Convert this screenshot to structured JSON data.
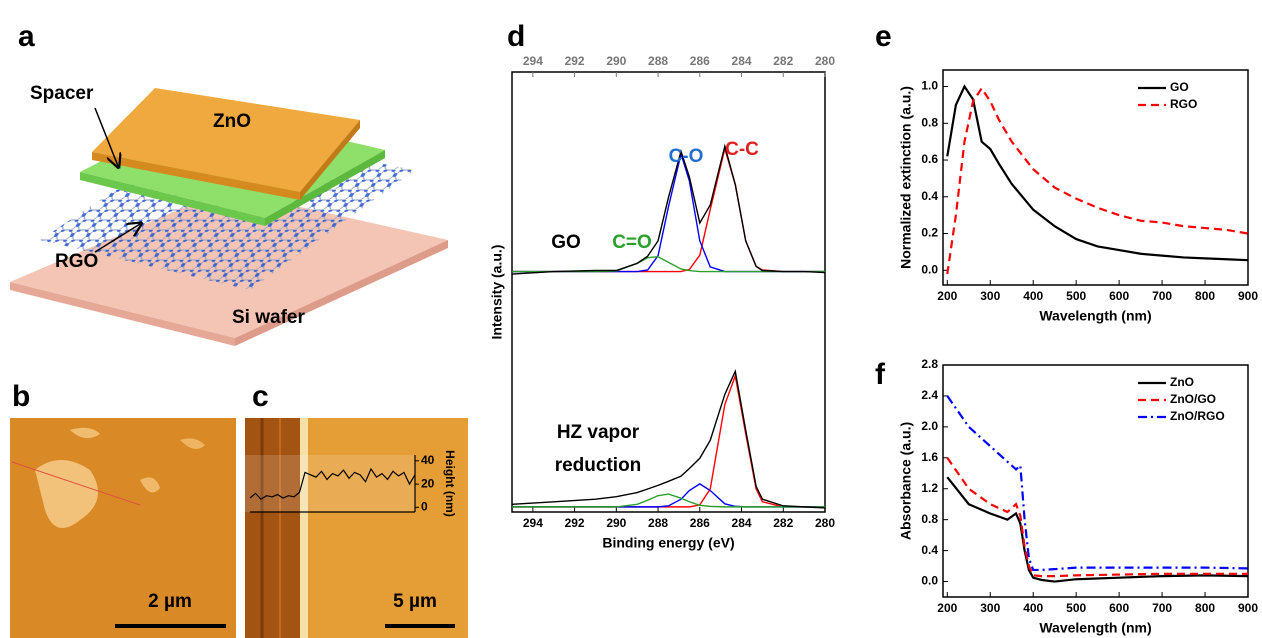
{
  "panels": {
    "a": {
      "letter": "a",
      "spacer": "Spacer",
      "zno": "ZnO",
      "rgo": "RGO",
      "si": "Si wafer"
    },
    "b": {
      "letter": "b",
      "scale_bar": "2 µm"
    },
    "c": {
      "letter": "c",
      "scale_bar": "5 µm"
    },
    "d": {
      "letter": "d"
    },
    "e": {
      "letter": "e"
    },
    "f": {
      "letter": "f"
    }
  },
  "chart_data": [
    {
      "type": "line",
      "ylabel": "Height (nm)",
      "ylim": [
        -4,
        45
      ],
      "yticks": [
        0,
        20,
        40
      ],
      "color": "#000000",
      "values": [
        8,
        12,
        7,
        10,
        9,
        11,
        8,
        10,
        9,
        13,
        30,
        28,
        26,
        31,
        24,
        29,
        27,
        32,
        25,
        30,
        28,
        22,
        33,
        26,
        29,
        24,
        31,
        27,
        30,
        20,
        28
      ]
    },
    {
      "type": "line",
      "xlabel": "Binding energy (eV)",
      "ylabel": "Intensity (a.u.)",
      "xlim": [
        295,
        280
      ],
      "xticks": [
        294,
        292,
        290,
        288,
        286,
        284,
        282,
        280
      ],
      "ylim": [
        1.7,
        10.3
      ],
      "top_axis": true,
      "x": [
        295,
        293,
        291,
        290,
        289,
        288.5,
        288,
        287.5,
        286.9,
        286.5,
        286,
        285.5,
        284.8,
        284.3,
        283.8,
        283.3,
        283,
        282,
        281,
        280
      ],
      "series": [
        {
          "color": "#ff0000",
          "values": [
            6.4,
            6.4,
            6.4,
            6.4,
            6.4,
            6.4,
            6.4,
            6.4,
            6.4,
            6.44,
            6.72,
            7.61,
            8.8,
            8.1,
            7.0,
            6.5,
            6.43,
            6.4,
            6.4,
            6.4
          ]
        },
        {
          "color": "#0000ff",
          "values": [
            6.4,
            6.4,
            6.4,
            6.4,
            6.4,
            6.43,
            6.71,
            7.67,
            8.7,
            8.17,
            7.0,
            6.49,
            6.4,
            6.4,
            6.4,
            6.4,
            6.4,
            6.4,
            6.4,
            6.4
          ]
        },
        {
          "color": "#2ca02c",
          "values": [
            6.4,
            6.4,
            6.4,
            6.41,
            6.56,
            6.67,
            6.69,
            6.58,
            6.45,
            6.42,
            6.4,
            6.4,
            6.4,
            6.4,
            6.4,
            6.4,
            6.4,
            6.4,
            6.4,
            6.4
          ]
        },
        {
          "color": "#000000",
          "values": [
            6.35,
            6.4,
            6.42,
            6.42,
            6.56,
            6.7,
            7.0,
            7.85,
            8.75,
            8.25,
            7.35,
            7.7,
            8.85,
            8.1,
            7.0,
            6.5,
            6.42,
            6.4,
            6.4,
            6.38
          ]
        },
        {
          "color": "#ff0000",
          "values": [
            1.8,
            1.8,
            1.8,
            1.8,
            1.8,
            1.8,
            1.8,
            1.8,
            1.8,
            1.8,
            1.84,
            2.15,
            3.8,
            4.36,
            3.23,
            2.15,
            1.9,
            1.8,
            1.8,
            1.8
          ]
        },
        {
          "color": "#0000ff",
          "values": [
            1.8,
            1.8,
            1.8,
            1.8,
            1.8,
            1.8,
            1.8,
            1.82,
            1.95,
            2.12,
            2.25,
            2.12,
            1.86,
            1.81,
            1.8,
            1.8,
            1.8,
            1.8,
            1.8,
            1.8
          ]
        },
        {
          "color": "#2ca02c",
          "values": [
            1.8,
            1.8,
            1.8,
            1.8,
            1.85,
            1.93,
            2.02,
            2.05,
            1.97,
            1.9,
            1.83,
            1.81,
            1.8,
            1.8,
            1.8,
            1.8,
            1.8,
            1.8,
            1.8,
            1.8
          ]
        },
        {
          "color": "#000000",
          "values": [
            1.85,
            1.9,
            1.95,
            2.0,
            2.08,
            2.15,
            2.22,
            2.3,
            2.4,
            2.55,
            2.75,
            3.1,
            4.0,
            4.45,
            3.3,
            2.2,
            1.95,
            1.82,
            1.8,
            1.78
          ]
        }
      ],
      "annotations": [
        {
          "text": "GO",
          "color": "#000000"
        },
        {
          "text": "C=O",
          "color": "#2ca02c"
        },
        {
          "text": "C-O",
          "color": "#1f6fd0"
        },
        {
          "text": "C-C",
          "color": "#e02020"
        },
        {
          "text": "HZ vapor",
          "color": "#000000"
        },
        {
          "text": "reduction",
          "color": "#000000"
        }
      ]
    },
    {
      "type": "line",
      "xlabel": "Wavelength (nm)",
      "ylabel": "Normalized extinction (a.u.)",
      "xlim": [
        190,
        900
      ],
      "xticks": [
        200,
        300,
        400,
        500,
        600,
        700,
        800,
        900
      ],
      "ylim": [
        -0.08,
        1.09
      ],
      "yticks": [
        {
          "value": 0,
          "label": "0.0"
        },
        0.2,
        0.4,
        0.6,
        0.8,
        {
          "value": 1,
          "label": "1.0"
        }
      ],
      "legend": "upper right",
      "x": [
        200,
        220,
        240,
        260,
        280,
        300,
        320,
        350,
        400,
        450,
        500,
        550,
        600,
        650,
        700,
        750,
        800,
        850,
        900
      ],
      "series": [
        {
          "name": "GO",
          "color": "#000000",
          "style": "solid",
          "values": [
            0.62,
            0.9,
            1.0,
            0.93,
            0.7,
            0.66,
            0.58,
            0.47,
            0.33,
            0.24,
            0.17,
            0.13,
            0.11,
            0.09,
            0.08,
            0.07,
            0.065,
            0.06,
            0.055
          ]
        },
        {
          "name": "RGO",
          "color": "#ff0000",
          "style": "dashed",
          "values": [
            -0.02,
            0.3,
            0.7,
            0.92,
            0.99,
            0.92,
            0.82,
            0.7,
            0.55,
            0.45,
            0.39,
            0.34,
            0.3,
            0.27,
            0.26,
            0.24,
            0.23,
            0.22,
            0.2
          ]
        }
      ]
    },
    {
      "type": "line",
      "xlabel": "Wavelength (nm)",
      "ylabel": "Absorbance (a.u.)",
      "xlim": [
        190,
        900
      ],
      "xticks": [
        200,
        300,
        400,
        500,
        600,
        700,
        800,
        900
      ],
      "ylim": [
        -0.2,
        2.8
      ],
      "yticks": [
        {
          "value": 0,
          "label": "0.0"
        },
        0.4,
        0.8,
        1.2,
        1.6,
        {
          "value": 2,
          "label": "2.0"
        },
        2.4,
        2.8
      ],
      "legend": "upper right",
      "x": [
        200,
        250,
        300,
        340,
        360,
        370,
        380,
        390,
        400,
        420,
        450,
        500,
        600,
        700,
        800,
        900
      ],
      "series": [
        {
          "name": "ZnO",
          "color": "#000000",
          "style": "solid",
          "values": [
            1.35,
            1.0,
            0.88,
            0.8,
            0.88,
            0.75,
            0.4,
            0.15,
            0.05,
            0.02,
            0.0,
            0.03,
            0.05,
            0.07,
            0.08,
            0.07
          ]
        },
        {
          "name": "ZnO/GO",
          "color": "#ff0000",
          "style": "dashed",
          "values": [
            1.6,
            1.2,
            1.0,
            0.9,
            1.0,
            0.85,
            0.45,
            0.2,
            0.08,
            0.07,
            0.07,
            0.08,
            0.09,
            0.1,
            0.1,
            0.1
          ]
        },
        {
          "name": "ZnO/RGO",
          "color": "#0000ff",
          "style": "dashdot",
          "values": [
            2.4,
            2.0,
            1.75,
            1.55,
            1.45,
            1.5,
            0.8,
            0.3,
            0.15,
            0.15,
            0.16,
            0.18,
            0.18,
            0.18,
            0.18,
            0.17
          ]
        }
      ]
    }
  ]
}
